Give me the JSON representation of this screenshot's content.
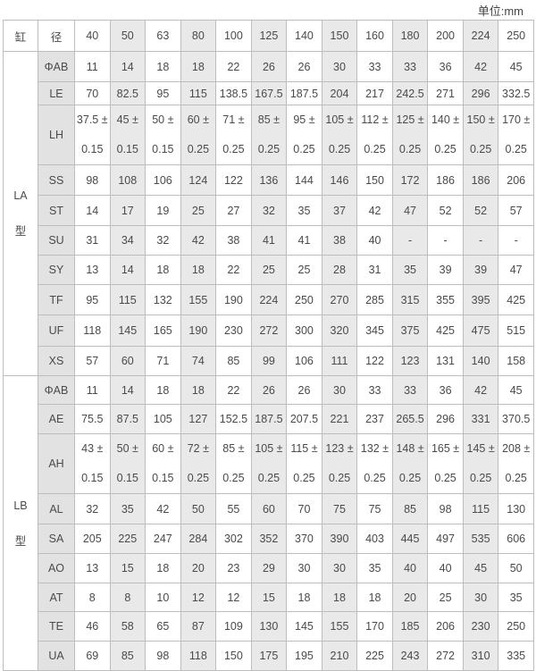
{
  "unit_label": "单位:mm",
  "header": {
    "col0": "缸",
    "col1": "径",
    "bores": [
      "40",
      "50",
      "63",
      "80",
      "100",
      "125",
      "140",
      "150",
      "160",
      "180",
      "200",
      "224",
      "250"
    ]
  },
  "groups": [
    {
      "label": [
        "LA",
        "型"
      ],
      "rows": [
        {
          "name": "ΦAB",
          "values": [
            "11",
            "14",
            "18",
            "18",
            "22",
            "26",
            "26",
            "30",
            "33",
            "33",
            "36",
            "42",
            "45"
          ]
        },
        {
          "name": "LE",
          "values": [
            "70",
            "82.5",
            "95",
            "115",
            "138.5",
            "167.5",
            "187.5",
            "204",
            "217",
            "242.5",
            "271",
            "296",
            "332.5"
          ]
        },
        {
          "name": "LH",
          "values": [
            "37.5 ±",
            "45 ±",
            "50 ±",
            "60 ±",
            "71 ±",
            "85 ±",
            "95 ±",
            "105 ±",
            "112 ±",
            "125 ±",
            "140 ±",
            "150 ±",
            "170 ±"
          ],
          "tolerance": [
            "0.15",
            "0.15",
            "0.15",
            "0.25",
            "0.25",
            "0.25",
            "0.25",
            "0.25",
            "0.25",
            "0.25",
            "0.25",
            "0.25",
            "0.25"
          ]
        },
        {
          "name": "SS",
          "values": [
            "98",
            "108",
            "106",
            "124",
            "122",
            "136",
            "144",
            "146",
            "150",
            "172",
            "186",
            "186",
            "206"
          ]
        },
        {
          "name": "ST",
          "values": [
            "14",
            "17",
            "19",
            "25",
            "27",
            "32",
            "35",
            "37",
            "42",
            "47",
            "52",
            "52",
            "57"
          ]
        },
        {
          "name": "SU",
          "values": [
            "31",
            "34",
            "32",
            "42",
            "38",
            "41",
            "41",
            "38",
            "40",
            "-",
            "-",
            "-",
            "-"
          ]
        },
        {
          "name": "SY",
          "values": [
            "13",
            "14",
            "18",
            "18",
            "22",
            "25",
            "25",
            "28",
            "31",
            "35",
            "39",
            "39",
            "47"
          ]
        },
        {
          "name": "TF",
          "values": [
            "95",
            "115",
            "132",
            "155",
            "190",
            "224",
            "250",
            "270",
            "285",
            "315",
            "355",
            "395",
            "425"
          ]
        },
        {
          "name": "UF",
          "values": [
            "118",
            "145",
            "165",
            "190",
            "230",
            "272",
            "300",
            "320",
            "345",
            "375",
            "425",
            "475",
            "515"
          ]
        },
        {
          "name": "XS",
          "values": [
            "57",
            "60",
            "71",
            "74",
            "85",
            "99",
            "106",
            "111",
            "122",
            "123",
            "131",
            "140",
            "158"
          ]
        }
      ]
    },
    {
      "label": [
        "LB",
        "型"
      ],
      "rows": [
        {
          "name": "ΦAB",
          "values": [
            "11",
            "14",
            "18",
            "18",
            "22",
            "26",
            "26",
            "30",
            "33",
            "33",
            "36",
            "42",
            "45"
          ]
        },
        {
          "name": "AE",
          "values": [
            "75.5",
            "87.5",
            "105",
            "127",
            "152.5",
            "187.5",
            "207.5",
            "221",
            "237",
            "265.5",
            "296",
            "331",
            "370.5"
          ]
        },
        {
          "name": "AH",
          "values": [
            "43 ±",
            "50 ±",
            "60 ±",
            "72 ±",
            "85 ±",
            "105 ±",
            "115 ±",
            "123 ±",
            "132 ±",
            "148 ±",
            "165 ±",
            "145 ±",
            "208 ±"
          ],
          "tolerance": [
            "0.15",
            "0.15",
            "0.15",
            "0.25",
            "0.25",
            "0.25",
            "0.25",
            "0.25",
            "0.25",
            "0.25",
            "0.25",
            "0.25",
            "0.25"
          ]
        },
        {
          "name": "AL",
          "values": [
            "32",
            "35",
            "42",
            "50",
            "55",
            "60",
            "70",
            "75",
            "75",
            "85",
            "98",
            "115",
            "130"
          ]
        },
        {
          "name": "SA",
          "values": [
            "205",
            "225",
            "247",
            "284",
            "302",
            "352",
            "370",
            "390",
            "403",
            "445",
            "497",
            "535",
            "606"
          ]
        },
        {
          "name": "AO",
          "values": [
            "13",
            "15",
            "18",
            "20",
            "23",
            "29",
            "30",
            "30",
            "35",
            "40",
            "40",
            "45",
            "50"
          ]
        },
        {
          "name": "AT",
          "values": [
            "8",
            "8",
            "10",
            "12",
            "12",
            "15",
            "18",
            "18",
            "18",
            "20",
            "25",
            "30",
            "35"
          ]
        },
        {
          "name": "TE",
          "values": [
            "46",
            "58",
            "65",
            "87",
            "109",
            "130",
            "145",
            "155",
            "170",
            "185",
            "206",
            "230",
            "250"
          ]
        },
        {
          "name": "UA",
          "values": [
            "69",
            "85",
            "98",
            "118",
            "150",
            "175",
            "195",
            "210",
            "225",
            "243",
            "272",
            "310",
            "335"
          ]
        }
      ]
    }
  ]
}
